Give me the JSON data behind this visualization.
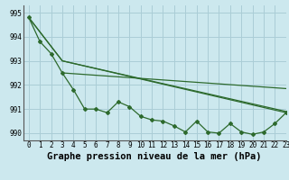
{
  "title": "Graphe pression niveau de la mer (hPa)",
  "background_color": "#cce8ee",
  "grid_color": "#aacdd6",
  "line_color": "#2d6a2d",
  "xlim": [
    -0.5,
    23
  ],
  "ylim": [
    989.7,
    995.3
  ],
  "yticks": [
    990,
    991,
    992,
    993,
    994,
    995
  ],
  "xticks": [
    0,
    1,
    2,
    3,
    4,
    5,
    6,
    7,
    8,
    9,
    10,
    11,
    12,
    13,
    14,
    15,
    16,
    17,
    18,
    19,
    20,
    21,
    22,
    23
  ],
  "lines": [
    {
      "x": [
        0,
        1,
        2,
        3,
        4,
        5,
        6,
        7,
        8,
        9,
        10,
        11,
        12,
        13,
        14,
        15,
        16,
        17,
        18,
        19,
        20,
        21,
        22,
        23
      ],
      "y": [
        994.8,
        993.8,
        993.3,
        992.5,
        991.8,
        991.0,
        991.0,
        990.85,
        991.3,
        991.1,
        990.7,
        990.55,
        990.5,
        990.3,
        990.05,
        990.5,
        990.05,
        990.0,
        990.4,
        990.05,
        989.95,
        990.05,
        990.4,
        990.85
      ]
    },
    {
      "x": [
        0,
        3,
        23
      ],
      "y": [
        994.8,
        993.0,
        990.9
      ]
    },
    {
      "x": [
        0,
        3,
        23
      ],
      "y": [
        994.8,
        993.0,
        990.85
      ]
    },
    {
      "x": [
        3,
        23
      ],
      "y": [
        992.5,
        991.85
      ]
    }
  ],
  "marker": "D",
  "marker_size": 2.0,
  "linewidth": 0.9,
  "title_fontsize": 7.5,
  "tick_fontsize": 5.5
}
